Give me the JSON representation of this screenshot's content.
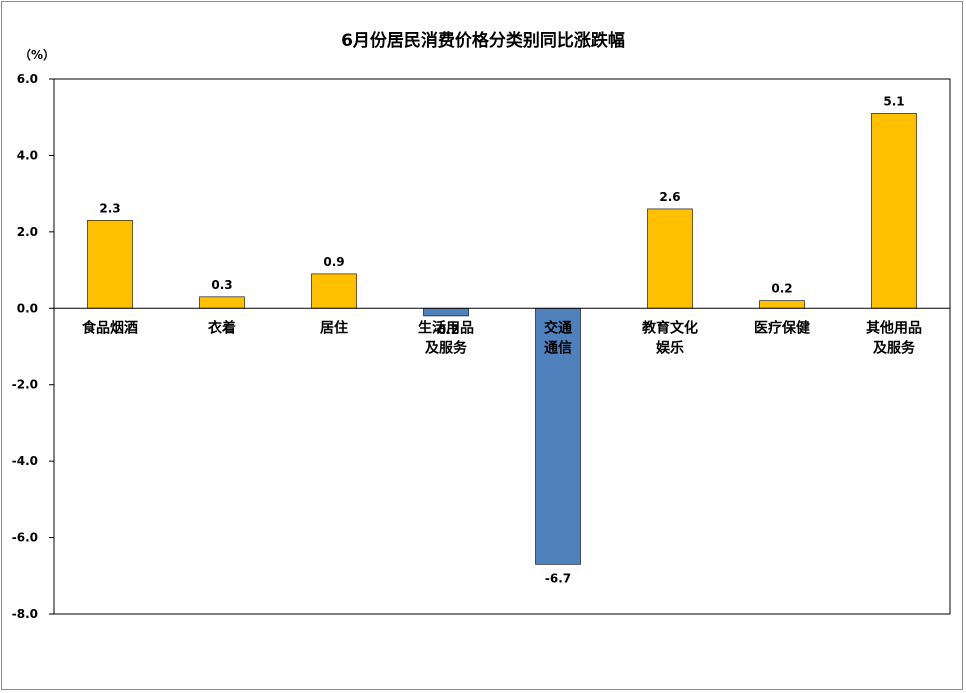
{
  "chart_data": {
    "type": "bar",
    "title": "6月份居民消费价格分类别同比涨跌幅",
    "unit": "（%）",
    "ylim": [
      -8.0,
      6.0
    ],
    "yticks": [
      "6.0",
      "4.0",
      "2.0",
      "0.0",
      "-2.0",
      "-4.0",
      "-6.0",
      "-8.0"
    ],
    "ytick_values": [
      6,
      4,
      2,
      0,
      -2,
      -4,
      -6,
      -8
    ],
    "categories": [
      [
        "食品烟酒"
      ],
      [
        "衣着"
      ],
      [
        "居住"
      ],
      [
        "生活用品",
        "及服务"
      ],
      [
        "交通",
        "通信"
      ],
      [
        "教育文化",
        "娱乐"
      ],
      [
        "医疗保健"
      ],
      [
        "其他用品",
        "及服务"
      ]
    ],
    "values": [
      2.3,
      0.3,
      0.9,
      -0.2,
      -6.7,
      2.6,
      0.2,
      5.1
    ],
    "value_labels": [
      "2.3",
      "0.3",
      "0.9",
      "-0.2",
      "-6.7",
      "2.6",
      "0.2",
      "5.1"
    ],
    "grid": false,
    "colors": {
      "positive": "#FFC000",
      "negative": "#4F81BD",
      "axis": "#000000",
      "border": "#8C8C8C"
    }
  }
}
